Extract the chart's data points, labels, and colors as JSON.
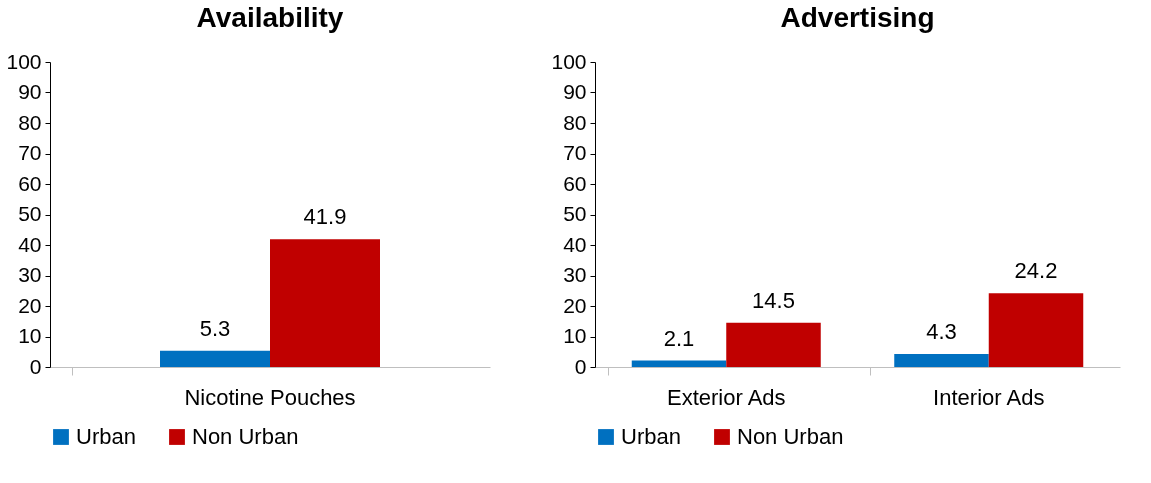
{
  "chart_data": [
    {
      "type": "bar",
      "title": "Availability",
      "categories": [
        "Nicotine Pouches"
      ],
      "series": [
        {
          "name": "Urban",
          "color": "#0070c0",
          "values": [
            5.3
          ]
        },
        {
          "name": "Non Urban",
          "color": "#c00000",
          "values": [
            41.9
          ]
        }
      ],
      "ylim": [
        0,
        100
      ],
      "yticks": [
        0,
        10,
        20,
        30,
        40,
        50,
        60,
        70,
        80,
        90,
        100
      ],
      "grid": false,
      "legend": "bottom",
      "data_labels": true
    },
    {
      "type": "bar",
      "title": "Advertising",
      "categories": [
        "Exterior Ads",
        "Interior Ads"
      ],
      "series": [
        {
          "name": "Urban",
          "color": "#0070c0",
          "values": [
            2.1,
            4.3
          ]
        },
        {
          "name": "Non Urban",
          "color": "#c00000",
          "values": [
            14.5,
            24.2
          ]
        }
      ],
      "ylim": [
        0,
        100
      ],
      "yticks": [
        0,
        10,
        20,
        30,
        40,
        50,
        60,
        70,
        80,
        90,
        100
      ],
      "grid": false,
      "legend": "bottom",
      "data_labels": true
    }
  ]
}
